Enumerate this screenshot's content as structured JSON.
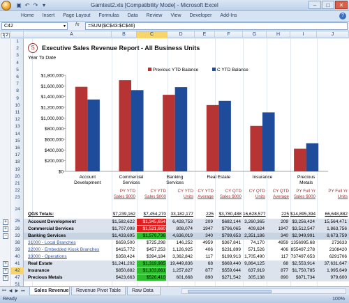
{
  "window": {
    "title": "Gamtest2.xls  [Compatibility Mode] - Microsoft Excel"
  },
  "ribbon_tabs": [
    "Home",
    "Insert",
    "Page Layout",
    "Formulas",
    "Data",
    "Review",
    "View",
    "Developer",
    "Add-Ins"
  ],
  "formula_bar": {
    "name_box": "C42",
    "fx": "fx",
    "formula": "=SUM($C$43:$C$46)"
  },
  "outline_levels": [
    "1",
    "2"
  ],
  "columns": [
    "A",
    "B",
    "C",
    "D",
    "E",
    "F",
    "G",
    "H",
    "I",
    "J"
  ],
  "selected_column": "C",
  "row_numbers": [
    "1",
    "2",
    "3",
    "4",
    "5",
    "6",
    "7",
    "8",
    "9",
    "10",
    "11",
    "12",
    "13",
    "14",
    "15",
    "16",
    "17",
    "18",
    "19",
    "20",
    "21",
    "22",
    "23",
    "24",
    "25",
    "26",
    "33",
    "38",
    "39",
    "40",
    "41",
    "42",
    "47",
    "51"
  ],
  "report": {
    "logo": "S",
    "title": "Executive Sales Revenue Report - All Business Units",
    "subtitle": "Year To Date"
  },
  "chart_data": {
    "type": "bar",
    "categories": [
      "Account Development",
      "Commercial Services",
      "Banking Services",
      "Real Estate",
      "Insurance",
      "Precious Metals"
    ],
    "series": [
      {
        "name": "Previous YTD Balance",
        "color": "#b73434",
        "values": [
          1582622,
          1707098,
          1433695,
          1241202,
          850882,
          423663
        ]
      },
      {
        "name": "C YTD Balance",
        "color": "#1e4c9a",
        "values": [
          1345654,
          1521660,
          1576736,
          1319985,
          1103661,
          526410
        ]
      }
    ],
    "ylim": [
      0,
      1800000
    ],
    "yticks": [
      "$0",
      "$200,000",
      "$400,000",
      "$600,000",
      "$800,000",
      "$1,000,000",
      "$1,200,000",
      "$1,400,000",
      "$1,600,000",
      "$1,800,000"
    ],
    "legend_position": "top",
    "grid": false
  },
  "table": {
    "headers": [
      [
        "PY YTD",
        "Sales $000"
      ],
      [
        "CY YTD",
        "Sales $000"
      ],
      [
        "CY YTD",
        "Units"
      ],
      [
        "CY YTD",
        "Average"
      ],
      [
        "CY QTD",
        "Sales $000"
      ],
      [
        "CY QTD",
        "Units"
      ],
      [
        "CY QTD",
        "Average"
      ],
      [
        "PY Full Yr",
        "Sales $000"
      ],
      [
        "PY Full Yr",
        "Units"
      ]
    ],
    "totals_label": "QGS Totals:",
    "totals": [
      "$7,239,162",
      "$7,454,270",
      "33,182,177",
      "225",
      "$3,780,488",
      "16,628,577",
      "225",
      "$14,895,394",
      "66,648,882"
    ],
    "rows": [
      {
        "label": "Account Development",
        "style": "bold",
        "outline": "+",
        "values": [
          "$1,582,622",
          "$1,345,654",
          "6,428,753",
          "209",
          "$682,144",
          "3,260,365",
          "209",
          "$3,256,424",
          "15,564,471"
        ],
        "cy_highlight": "red"
      },
      {
        "label": "Commercial Services",
        "style": "bold",
        "outline": "+",
        "values": [
          "$1,707,098",
          "$1,521,660",
          "808,074",
          "1947",
          "$796,065",
          "409,624",
          "1947",
          "$3,512,547",
          "1,863,756"
        ],
        "cy_highlight": "red"
      },
      {
        "label": "Banking Services",
        "style": "bold",
        "outline": "-",
        "values": [
          "$1,433,695",
          "$1,576,736",
          "4,636,019",
          "340",
          "$799,653",
          "2,351,186",
          "340",
          "$2,949,991",
          "8,673,759"
        ],
        "cy_highlight": "green"
      },
      {
        "label": "31000 - Local Branches",
        "style": "link",
        "outline": "",
        "values": [
          "$659,500",
          "$725,298",
          "146,252",
          "4959",
          "$367,841",
          "74,170",
          "4959",
          "1356995.68",
          "273633"
        ],
        "cy_highlight": ""
      },
      {
        "label": "32000 - Embedded Kiosk Branches",
        "style": "link",
        "outline": "",
        "values": [
          "$415,772",
          "$457,253",
          "1,126,925",
          "406",
          "$231,899",
          "571,526",
          "406",
          "855497.278",
          "2108420"
        ],
        "cy_highlight": ""
      },
      {
        "label": "33000 - Operations",
        "style": "link",
        "outline": "",
        "values": [
          "$358,424",
          "$394,184",
          "3,362,842",
          "117",
          "$199,913",
          "1,705,490",
          "117",
          "737497.653",
          "6291706"
        ],
        "cy_highlight": ""
      },
      {
        "label": "Real Estate",
        "style": "bold",
        "outline": "+",
        "values": [
          "$1,241,202",
          "$1,319,985",
          "19,449,836",
          "68",
          "$669,440",
          "9,864,125",
          "68",
          "$2,553,914",
          "37,631,647"
        ],
        "cy_highlight": "green"
      },
      {
        "label": "Insurance",
        "style": "bold",
        "outline": "+",
        "values": [
          "$850,882",
          "$1,103,661",
          "1,257,827",
          "877",
          "$559,644",
          "637,919",
          "877",
          "$1,750,785",
          "1,995,649"
        ],
        "cy_highlight": "green"
      },
      {
        "label": "Precious Metals",
        "style": "bold",
        "outline": "+",
        "values": [
          "$423,663",
          "$526,410",
          "601,668",
          "890",
          "$271,542",
          "305,138",
          "890",
          "$871,734",
          "979,600"
        ],
        "cy_highlight": "green"
      }
    ]
  },
  "sheet_tabs": [
    "Sales Revenue",
    "Revenue Pivot Table",
    "Raw Data"
  ],
  "active_sheet": "Sales Revenue",
  "status": {
    "text": "Ready",
    "zoom": "100%"
  },
  "colors": {
    "positive": "#2ebd2e",
    "negative": "#e02020",
    "header_text": "#b03030",
    "link": "#2c55b0"
  }
}
